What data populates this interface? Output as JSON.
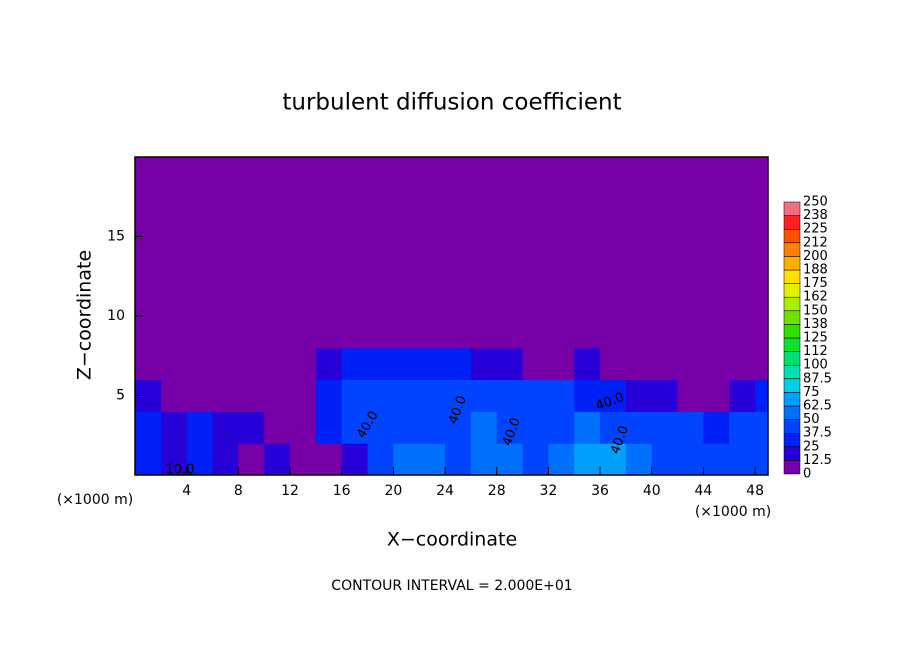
{
  "chart_data": {
    "type": "heatmap",
    "title": "turbulent diffusion coefficient",
    "x_label": "X−coordinate",
    "y_label": "Z−coordinate",
    "x_unit": "(×1000 m)",
    "y_unit": "(×1000 m)",
    "footer": "CONTOUR INTERVAL = 2.000E+01",
    "annotations": [
      "40.0",
      "40.0",
      "40.0",
      "40.0",
      "40.0",
      "10.0"
    ],
    "xlim": [
      0,
      49
    ],
    "ylim": [
      0,
      20
    ],
    "xticks": [
      4,
      8,
      12,
      16,
      20,
      24,
      28,
      32,
      36,
      40,
      44,
      48
    ],
    "yticks": [
      5,
      10,
      15
    ],
    "x": [
      0,
      2,
      4,
      6,
      8,
      10,
      12,
      14,
      16,
      18,
      20,
      22,
      24,
      26,
      28,
      30,
      32,
      34,
      36,
      38,
      40,
      42,
      44,
      46,
      48
    ],
    "z": [
      0,
      2,
      4,
      6,
      8,
      10,
      12,
      14,
      16,
      18
    ],
    "values": [
      [
        30,
        20,
        30,
        15,
        10,
        15,
        10,
        10,
        20,
        45,
        55,
        50,
        45,
        50,
        60,
        45,
        55,
        70,
        65,
        50,
        45,
        40,
        40,
        45,
        45
      ],
      [
        30,
        15,
        30,
        15,
        15,
        10,
        10,
        25,
        40,
        45,
        40,
        45,
        40,
        50,
        40,
        45,
        45,
        50,
        40,
        40,
        40,
        40,
        35,
        40,
        40
      ],
      [
        15,
        5,
        10,
        5,
        5,
        5,
        5,
        30,
        40,
        40,
        40,
        40,
        45,
        40,
        40,
        40,
        40,
        30,
        35,
        20,
        15,
        5,
        5,
        20,
        30
      ],
      [
        5,
        0,
        0,
        0,
        0,
        0,
        0,
        15,
        30,
        35,
        35,
        30,
        30,
        20,
        15,
        10,
        10,
        15,
        5,
        0,
        0,
        0,
        0,
        0,
        0
      ],
      [
        0,
        0,
        0,
        0,
        0,
        0,
        0,
        0,
        0,
        5,
        10,
        5,
        0,
        0,
        0,
        0,
        0,
        0,
        0,
        0,
        0,
        0,
        0,
        0,
        0
      ],
      [
        0,
        0,
        0,
        0,
        0,
        0,
        0,
        0,
        0,
        0,
        0,
        0,
        0,
        0,
        0,
        0,
        0,
        0,
        0,
        0,
        0,
        0,
        0,
        0,
        0
      ],
      [
        0,
        0,
        0,
        0,
        0,
        0,
        0,
        0,
        0,
        0,
        0,
        0,
        0,
        0,
        0,
        0,
        0,
        0,
        0,
        0,
        0,
        0,
        0,
        0,
        0
      ],
      [
        0,
        0,
        0,
        0,
        0,
        0,
        0,
        0,
        0,
        0,
        0,
        0,
        0,
        0,
        0,
        0,
        0,
        0,
        0,
        0,
        0,
        0,
        0,
        0,
        0
      ],
      [
        0,
        0,
        0,
        0,
        0,
        0,
        0,
        0,
        0,
        0,
        0,
        0,
        0,
        0,
        0,
        0,
        0,
        0,
        0,
        0,
        0,
        0,
        0,
        0,
        0
      ],
      [
        0,
        0,
        0,
        0,
        0,
        0,
        0,
        0,
        0,
        0,
        0,
        0,
        0,
        0,
        0,
        0,
        0,
        0,
        0,
        0,
        0,
        0,
        0,
        0,
        0
      ]
    ],
    "colorbar": {
      "ticks": [
        0,
        12.5,
        25,
        37.5,
        50,
        62.5,
        75,
        87.5,
        100,
        {
          "value": 112.5,
          "label": "112"
        },
        125,
        {
          "value": 137.5,
          "label": "138"
        },
        150,
        {
          "value": 162.5,
          "label": "162"
        },
        175,
        {
          "value": 187.5,
          "label": "188"
        },
        200,
        {
          "value": 212.5,
          "label": "212"
        },
        225,
        {
          "value": 237.5,
          "label": "238"
        },
        250
      ],
      "colors": [
        "#7800a8",
        "#2800d8",
        "#0020f8",
        "#0044ff",
        "#0070ff",
        "#00a0ff",
        "#00d0e8",
        "#00e0b0",
        "#00e070",
        "#10e030",
        "#30e000",
        "#70e000",
        "#a8f000",
        "#e0f000",
        "#ffe000",
        "#ffb000",
        "#ff8000",
        "#ff5000",
        "#ff2020",
        "#f07080"
      ]
    }
  }
}
